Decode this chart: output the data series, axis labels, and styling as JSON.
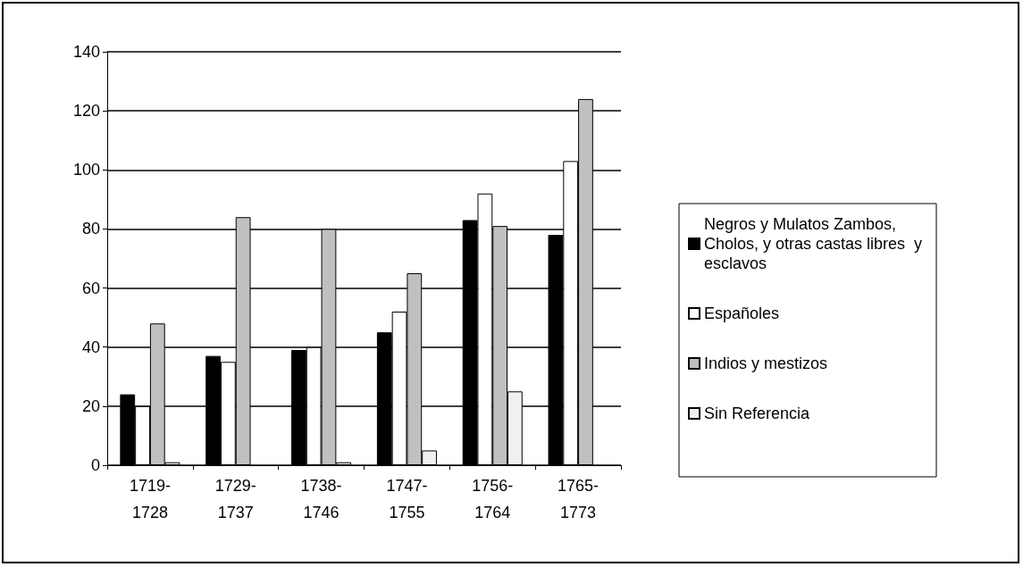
{
  "chart_data": {
    "type": "bar",
    "categories": [
      "1719-1728",
      "1729-1737",
      "1738-1746",
      "1747-1755",
      "1756-1764",
      "1765-1773"
    ],
    "series": [
      {
        "name": "Negros y Mulatos Zambos, Cholos, y otras castas libres  y esclavos",
        "color": "#000000",
        "values": [
          24,
          37,
          39,
          45,
          83,
          78
        ]
      },
      {
        "name": "Españoles",
        "color": "#ffffff",
        "values": [
          20,
          35,
          40,
          52,
          92,
          103
        ]
      },
      {
        "name": "Indios y mestizos",
        "color": "#c0c0c0",
        "values": [
          48,
          84,
          80,
          65,
          81,
          124
        ]
      },
      {
        "name": "Sin Referencia",
        "color": "#f0f0f0",
        "values": [
          1,
          0,
          1,
          5,
          25,
          0
        ]
      }
    ],
    "ylim": [
      0,
      140
    ],
    "yticks": [
      0,
      20,
      40,
      60,
      80,
      100,
      120,
      140
    ],
    "grid": "y",
    "legend": "right"
  }
}
